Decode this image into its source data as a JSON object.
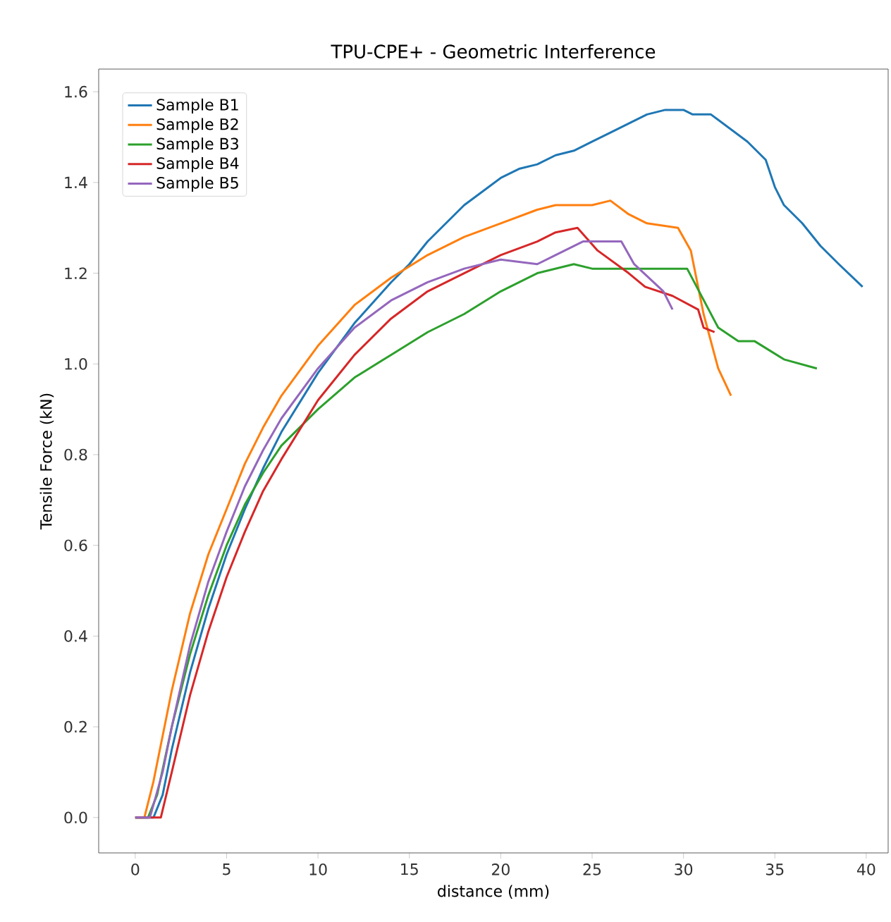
{
  "chart_data": {
    "type": "line",
    "title": "TPU-CPE+ - Geometric Interference",
    "xlabel": "distance (mm)",
    "ylabel": "Tensile Force (kN)",
    "xlim": [
      -2,
      41.2
    ],
    "ylim": [
      -0.078,
      1.65
    ],
    "xticks": [
      0,
      5,
      10,
      15,
      20,
      25,
      30,
      35,
      40
    ],
    "yticks": [
      {
        "value": 0,
        "label": "0.0"
      },
      {
        "value": 0.2,
        "label": "0.2"
      },
      {
        "value": 0.4,
        "label": "0.4"
      },
      {
        "value": 0.6,
        "label": "0.6"
      },
      {
        "value": 0.8,
        "label": "0.8"
      },
      {
        "value": 1.0,
        "label": "1.0"
      },
      {
        "value": 1.2,
        "label": "1.2"
      },
      {
        "value": 1.4,
        "label": "1.4"
      },
      {
        "value": 1.6,
        "label": "1.6"
      }
    ],
    "grid": false,
    "legend": "top left",
    "marker": "none",
    "line_style": "solid",
    "series": [
      {
        "name": "Sample B1",
        "color": "#1f77b4",
        "x": [
          0,
          1,
          1.5,
          2,
          3,
          4,
          5,
          6,
          7,
          8,
          10,
          12,
          14,
          15,
          16,
          17,
          18,
          19,
          20,
          21,
          22,
          23,
          24,
          25,
          26,
          27,
          28,
          29,
          30,
          30.5,
          31.5,
          32.5,
          33.5,
          34.5,
          35,
          35.5,
          36.5,
          37.5,
          38.5,
          39.8
        ],
        "values": [
          0,
          0,
          0.05,
          0.15,
          0.32,
          0.46,
          0.58,
          0.68,
          0.77,
          0.85,
          0.98,
          1.09,
          1.18,
          1.22,
          1.27,
          1.31,
          1.35,
          1.38,
          1.41,
          1.43,
          1.44,
          1.46,
          1.47,
          1.49,
          1.51,
          1.53,
          1.55,
          1.56,
          1.56,
          1.55,
          1.55,
          1.52,
          1.49,
          1.45,
          1.39,
          1.35,
          1.31,
          1.26,
          1.22,
          1.17
        ]
      },
      {
        "name": "Sample B2",
        "color": "#ff7f0e",
        "x": [
          0,
          0.5,
          1,
          2,
          3,
          4,
          5,
          6,
          7,
          8,
          10,
          12,
          14,
          16,
          18,
          20,
          22,
          23,
          25,
          26,
          27,
          28,
          29.7,
          30.4,
          31.1,
          31.9,
          32.6
        ],
        "values": [
          0,
          0,
          0.08,
          0.28,
          0.45,
          0.58,
          0.68,
          0.78,
          0.86,
          0.93,
          1.04,
          1.13,
          1.19,
          1.24,
          1.28,
          1.31,
          1.34,
          1.35,
          1.35,
          1.36,
          1.33,
          1.31,
          1.3,
          1.25,
          1.11,
          0.99,
          0.93
        ]
      },
      {
        "name": "Sample B3",
        "color": "#2ca02c",
        "x": [
          0,
          0.7,
          1.2,
          2,
          3,
          4,
          5,
          6,
          7,
          8,
          10,
          12,
          14,
          16,
          18,
          20,
          22,
          24,
          25,
          30.2,
          31.9,
          33,
          33.9,
          35.5,
          37.3
        ],
        "values": [
          0,
          0,
          0.05,
          0.2,
          0.36,
          0.49,
          0.6,
          0.69,
          0.76,
          0.82,
          0.9,
          0.97,
          1.02,
          1.07,
          1.11,
          1.16,
          1.2,
          1.22,
          1.21,
          1.21,
          1.08,
          1.05,
          1.05,
          1.01,
          0.99
        ]
      },
      {
        "name": "Sample B4",
        "color": "#d62728",
        "x": [
          0,
          1.4,
          2,
          3,
          4,
          5,
          6,
          7,
          8,
          10,
          12,
          14,
          16,
          18,
          20,
          22,
          23,
          24.2,
          25.3,
          27,
          27.9,
          29.4,
          30.8,
          31.1,
          31.7
        ],
        "values": [
          0,
          0,
          0.1,
          0.27,
          0.41,
          0.53,
          0.63,
          0.72,
          0.79,
          0.92,
          1.02,
          1.1,
          1.16,
          1.2,
          1.24,
          1.27,
          1.29,
          1.3,
          1.25,
          1.2,
          1.17,
          1.15,
          1.12,
          1.08,
          1.07
        ]
      },
      {
        "name": "Sample B5",
        "color": "#9467bd",
        "x": [
          0,
          0.8,
          1.5,
          2,
          3,
          4,
          5,
          6,
          7,
          8,
          10,
          12,
          14,
          16,
          18,
          20,
          22,
          23,
          24.5,
          26.6,
          27.3,
          28.9,
          29.4
        ],
        "values": [
          0,
          0,
          0.1,
          0.2,
          0.38,
          0.52,
          0.63,
          0.73,
          0.81,
          0.88,
          0.99,
          1.08,
          1.14,
          1.18,
          1.21,
          1.23,
          1.22,
          1.24,
          1.27,
          1.27,
          1.22,
          1.16,
          1.12
        ]
      }
    ]
  }
}
